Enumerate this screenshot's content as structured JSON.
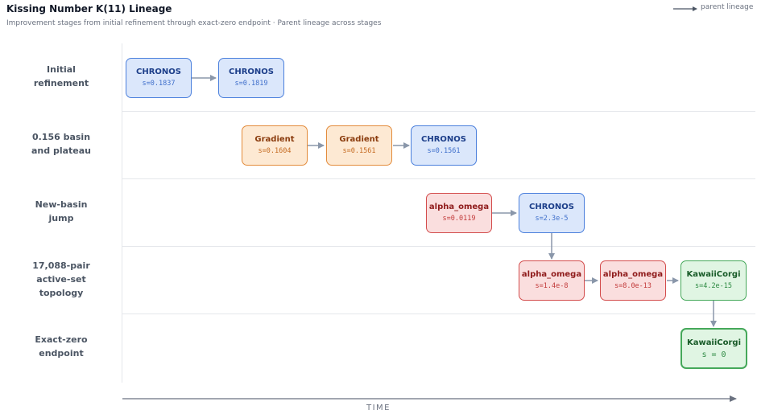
{
  "header": {
    "title": "Kissing Number K(11) Lineage",
    "subtitle": "Improvement stages from initial refinement through exact-zero endpoint · Parent lineage across stages",
    "legend_label": "parent lineage"
  },
  "lanes": [
    {
      "line1": "Initial",
      "line2": "refinement",
      "line3": ""
    },
    {
      "line1": "0.156 basin",
      "line2": "and plateau",
      "line3": ""
    },
    {
      "line1": "New-basin",
      "line2": "jump",
      "line3": ""
    },
    {
      "line1": "17,088-pair",
      "line2": "active-set",
      "line3": "topology"
    },
    {
      "line1": "Exact-zero",
      "line2": "endpoint",
      "line3": ""
    }
  ],
  "nodes": [
    {
      "name": "CHRONOS",
      "score": "s=0.1837"
    },
    {
      "name": "CHRONOS",
      "score": "s=0.1819"
    },
    {
      "name": "Gradient",
      "score": "s=0.1604"
    },
    {
      "name": "Gradient",
      "score": "s=0.1561"
    },
    {
      "name": "CHRONOS",
      "score": "s=0.1561"
    },
    {
      "name": "alpha_omega",
      "score": "s=0.0119"
    },
    {
      "name": "CHRONOS",
      "score": "s=2.3e-5"
    },
    {
      "name": "alpha_omega",
      "score": "s=1.4e-8"
    },
    {
      "name": "alpha_omega",
      "score": "s=8.0e-13"
    },
    {
      "name": "KawaiiCorgi",
      "score": "s=4.2e-15"
    },
    {
      "name": "KawaiiCorgi",
      "score": "s = 0"
    }
  ],
  "axis": {
    "label": "TIME"
  },
  "colors": {
    "chronos": "#4a7fdc",
    "gradient": "#e38b3b",
    "alpha_omega": "#d34c4c",
    "kawaiicorgi": "#45a85a",
    "arrow": "#8a97aa"
  }
}
